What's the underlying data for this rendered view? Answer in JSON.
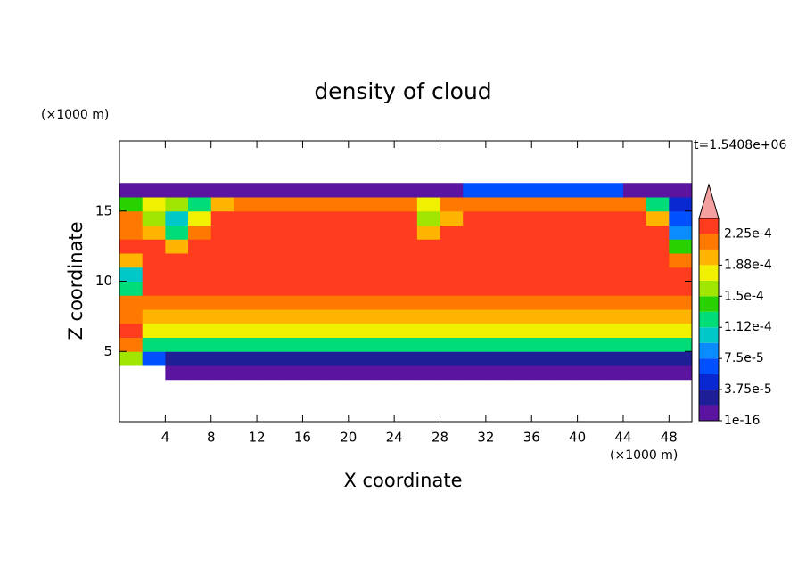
{
  "chart_data": {
    "type": "contour",
    "title": "density of cloud",
    "xlabel": "X coordinate",
    "ylabel": "Z coordinate",
    "x_unit": "(×1000 m)",
    "y_unit": "(×1000 m)",
    "annotation": "t=1.5408e+06",
    "xlim": [
      0,
      50
    ],
    "ylim": [
      0,
      20
    ],
    "xticks": [
      4,
      8,
      12,
      16,
      20,
      24,
      28,
      32,
      36,
      40,
      44,
      48
    ],
    "yticks": [
      5,
      10,
      15
    ],
    "x_edges": [
      0,
      2,
      4,
      6,
      8,
      10,
      12,
      14,
      16,
      18,
      20,
      22,
      24,
      26,
      28,
      30,
      32,
      34,
      36,
      38,
      40,
      42,
      44,
      46,
      48,
      50
    ],
    "y_edges": [
      3,
      4,
      5,
      6,
      7,
      8,
      9,
      10,
      11,
      12,
      13,
      14,
      15,
      16,
      17
    ],
    "z": [
      [
        0,
        0,
        5e-06,
        5e-06,
        5e-06,
        5e-06,
        5e-06,
        5e-06,
        5e-06,
        5e-06,
        5e-06,
        5e-06,
        5e-06,
        5e-06,
        5e-06,
        5e-06,
        5e-06,
        5e-06,
        5e-06,
        5e-06,
        5e-06,
        5e-06,
        5e-06,
        5e-06,
        5e-06
      ],
      [
        0.00015,
        6e-05,
        3e-05,
        3e-05,
        3e-05,
        3e-05,
        3e-05,
        3e-05,
        3e-05,
        3e-05,
        3e-05,
        3e-05,
        3e-05,
        3e-05,
        3e-05,
        3e-05,
        3e-05,
        3e-05,
        3e-05,
        3e-05,
        3e-05,
        3e-05,
        3e-05,
        3e-05,
        3e-05
      ],
      [
        0.00022,
        0.00013,
        0.00013,
        0.00013,
        0.00013,
        0.00013,
        0.00013,
        0.00013,
        0.00013,
        0.00013,
        0.00013,
        0.00013,
        0.00013,
        0.00013,
        0.00013,
        0.00013,
        0.00013,
        0.00013,
        0.00013,
        0.00013,
        0.00013,
        0.00013,
        0.00013,
        0.00013,
        0.00013
      ],
      [
        0.00023,
        0.000175,
        0.000175,
        0.000175,
        0.000175,
        0.000175,
        0.000175,
        0.000175,
        0.000175,
        0.000175,
        0.000175,
        0.000175,
        0.000175,
        0.000175,
        0.000175,
        0.000175,
        0.000175,
        0.000175,
        0.000175,
        0.000175,
        0.000175,
        0.000175,
        0.000175,
        0.000175,
        0.000175
      ],
      [
        0.00022,
        0.000195,
        0.000195,
        0.000195,
        0.000195,
        0.000195,
        0.000195,
        0.000195,
        0.000195,
        0.000195,
        0.000195,
        0.000195,
        0.000195,
        0.000195,
        0.000195,
        0.000195,
        0.000195,
        0.000195,
        0.000195,
        0.000195,
        0.000195,
        0.000195,
        0.000195,
        0.000195,
        0.000195
      ],
      [
        0.000215,
        0.000215,
        0.000215,
        0.000215,
        0.000215,
        0.000215,
        0.000215,
        0.000215,
        0.000215,
        0.000215,
        0.000215,
        0.000215,
        0.000215,
        0.000215,
        0.000215,
        0.000215,
        0.000215,
        0.000215,
        0.000215,
        0.000215,
        0.000215,
        0.000215,
        0.000215,
        0.000215,
        0.000215
      ],
      [
        0.00012,
        0.00023,
        0.00023,
        0.00023,
        0.00023,
        0.00023,
        0.00023,
        0.00023,
        0.00023,
        0.00023,
        0.00023,
        0.00023,
        0.00023,
        0.00023,
        0.00023,
        0.00023,
        0.00023,
        0.00023,
        0.00023,
        0.00023,
        0.00023,
        0.00023,
        0.00023,
        0.00023,
        0.00023
      ],
      [
        0.00011,
        0.000233,
        0.000233,
        0.000233,
        0.000233,
        0.000233,
        0.000233,
        0.000233,
        0.000233,
        0.000233,
        0.000233,
        0.000233,
        0.000233,
        0.000233,
        0.000233,
        0.000233,
        0.000233,
        0.000233,
        0.000233,
        0.000233,
        0.000233,
        0.000233,
        0.000233,
        0.000233,
        0.000233
      ],
      [
        0.0002,
        0.000235,
        0.000235,
        0.000235,
        0.000235,
        0.000235,
        0.000235,
        0.000235,
        0.000235,
        0.000235,
        0.000235,
        0.000235,
        0.000235,
        0.000235,
        0.000235,
        0.000235,
        0.000235,
        0.000235,
        0.000235,
        0.000235,
        0.000235,
        0.000235,
        0.000235,
        0.000235,
        0.00021
      ],
      [
        0.000235,
        0.000235,
        0.0002,
        0.000235,
        0.000235,
        0.000235,
        0.000235,
        0.000235,
        0.000235,
        0.000235,
        0.000235,
        0.000235,
        0.000235,
        0.000235,
        0.000235,
        0.000235,
        0.000235,
        0.000235,
        0.000235,
        0.000235,
        0.000235,
        0.000235,
        0.000235,
        0.000235,
        0.00014
      ],
      [
        0.00022,
        0.00019,
        0.00012,
        0.00021,
        0.000235,
        0.000235,
        0.000235,
        0.000235,
        0.000235,
        0.000235,
        0.000235,
        0.000235,
        0.000235,
        0.00019,
        0.000235,
        0.000235,
        0.000235,
        0.000235,
        0.000235,
        0.000235,
        0.000235,
        0.000235,
        0.000235,
        0.000235,
        8e-05
      ],
      [
        0.00021,
        0.00016,
        0.0001,
        0.00017,
        0.00023,
        0.00023,
        0.00023,
        0.00023,
        0.00023,
        0.00023,
        0.00023,
        0.00023,
        0.00023,
        0.00015,
        0.0002,
        0.00023,
        0.00023,
        0.00023,
        0.00023,
        0.00023,
        0.00023,
        0.00023,
        0.00023,
        0.00019,
        6e-05
      ],
      [
        0.00014,
        0.00018,
        0.00016,
        0.00012,
        0.00019,
        0.00021,
        0.00021,
        0.00021,
        0.00021,
        0.00021,
        0.00021,
        0.00021,
        0.00021,
        0.00017,
        0.00021,
        0.00021,
        0.00021,
        0.00021,
        0.00021,
        0.00021,
        0.00021,
        0.00021,
        0.00021,
        0.00013,
        4e-05
      ],
      [
        1e-05,
        1e-05,
        1e-05,
        1e-05,
        1e-05,
        1e-05,
        1e-05,
        1e-05,
        1e-05,
        1e-05,
        1e-05,
        1e-05,
        1e-05,
        1e-05,
        1e-05,
        6e-05,
        6e-05,
        6e-05,
        6e-05,
        6e-05,
        6e-05,
        6e-05,
        1e-05,
        1e-05,
        1e-05
      ]
    ],
    "levels": [
      1e-16,
      1.875e-05,
      3.75e-05,
      5.625e-05,
      7.5e-05,
      9.375e-05,
      0.0001125,
      0.00013125,
      0.00015,
      0.00016875,
      0.0001875,
      0.00020625,
      0.000225,
      0.00024375
    ],
    "colors": [
      "#5a14a0",
      "#1e1e96",
      "#0a28d2",
      "#0050ff",
      "#0a8cff",
      "#00c8c8",
      "#00dc78",
      "#28d200",
      "#a0e600",
      "#f0f000",
      "#ffb400",
      "#ff7800",
      "#ff3c1e"
    ],
    "over_color": "#f4a0a0",
    "colorbar_ticks": [
      {
        "value": 1e-16,
        "label": "1e-16"
      },
      {
        "value": 3.75e-05,
        "label": "3.75e-5"
      },
      {
        "value": 7.5e-05,
        "label": "7.5e-5"
      },
      {
        "value": 0.0001125,
        "label": "1.12e-4"
      },
      {
        "value": 0.00015,
        "label": "1.5e-4"
      },
      {
        "value": 0.0001875,
        "label": "1.88e-4"
      },
      {
        "value": 0.000225,
        "label": "2.25e-4"
      }
    ]
  }
}
